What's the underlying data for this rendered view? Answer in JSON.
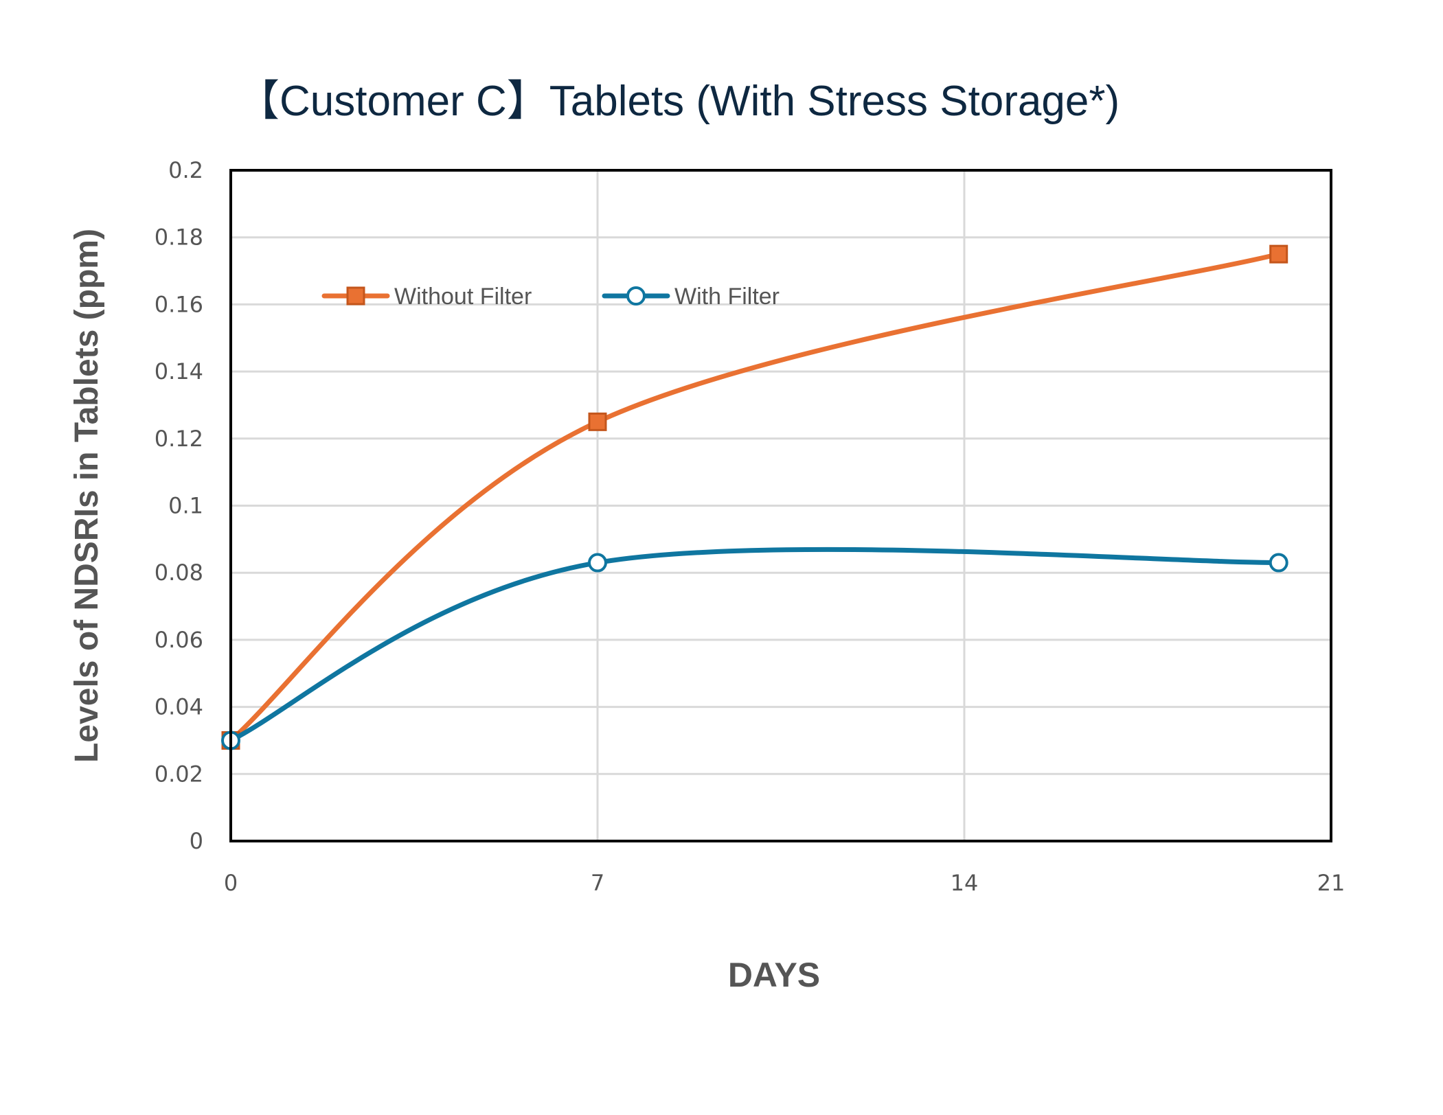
{
  "chart_data": {
    "type": "line",
    "title": "【Customer C】Tablets (With Stress Storage*)",
    "xlabel": "DAYS",
    "ylabel": "Levels of NDSRIs in Tablets (ppm)",
    "xlim": [
      0,
      21
    ],
    "ylim": [
      0,
      0.2
    ],
    "xticks": [
      "0",
      "7",
      "14",
      "21"
    ],
    "xtick_values": [
      0,
      7,
      14,
      21
    ],
    "yticks": [
      "0",
      "0.02",
      "0.04",
      "0.06",
      "0.08",
      "0.1",
      "0.12",
      "0.14",
      "0.16",
      "0.18",
      "0.2"
    ],
    "ytick_values": [
      0,
      0.02,
      0.04,
      0.06,
      0.08,
      0.1,
      0.12,
      0.14,
      0.16,
      0.18,
      0.2
    ],
    "grid": true,
    "smooth": true,
    "legend_position": "top-left",
    "series": [
      {
        "name": "Without Filter",
        "marker": "square",
        "color": "#e97132",
        "x": [
          0,
          7,
          20
        ],
        "values": [
          0.03,
          0.125,
          0.175
        ]
      },
      {
        "name": "With Filter",
        "marker": "circle",
        "color": "#0f76a0",
        "x": [
          0,
          7,
          20
        ],
        "values": [
          0.03,
          0.083,
          0.083
        ]
      }
    ]
  }
}
